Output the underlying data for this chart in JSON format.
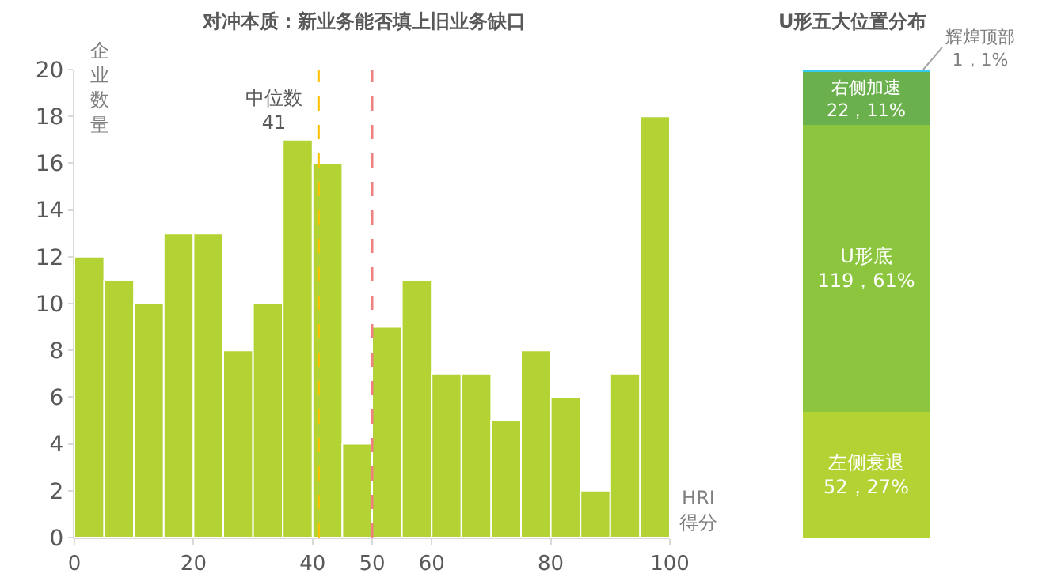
{
  "chart_data": [
    {
      "type": "histogram",
      "title": "对冲本质：新业务能否填上旧业务缺口",
      "xlabel": "HRI\n得分",
      "ylabel": "企业数量",
      "color": "#b3d234",
      "bins": [
        0,
        5,
        10,
        15,
        20,
        25,
        30,
        35,
        40,
        45,
        50,
        55,
        60,
        65,
        70,
        75,
        80,
        85,
        90,
        95,
        100
      ],
      "values": [
        12,
        11,
        10,
        13,
        13,
        8,
        10,
        17,
        16,
        4,
        9,
        11,
        7,
        7,
        5,
        8,
        6,
        2,
        7,
        18
      ],
      "xlim": [
        0,
        100
      ],
      "xticks": [
        0,
        20,
        40,
        50,
        60,
        80,
        100
      ],
      "ylim": [
        0,
        20
      ],
      "yticks": [
        0,
        2,
        4,
        6,
        8,
        10,
        12,
        14,
        16,
        18,
        20
      ],
      "ref_lines": [
        {
          "axis": "x",
          "value": 41,
          "label": "中位数\n41",
          "color": "#ffc000",
          "line_style": "dashed"
        },
        {
          "axis": "x",
          "value": 50,
          "label": null,
          "color": "#f08080",
          "line_style": "dashed"
        }
      ],
      "grid": false,
      "legend": false
    },
    {
      "type": "bar",
      "title": "U形五大位置分布",
      "stacked": true,
      "categories": [
        null
      ],
      "legend": false,
      "series": [
        {
          "name": "左侧衰退",
          "color": "#b3d234",
          "values": [
            52
          ],
          "value_labels": [
            "52，27%"
          ]
        },
        {
          "name": "U形底",
          "color": "#8cc63f",
          "values": [
            119
          ],
          "value_labels": [
            "119，61%"
          ]
        },
        {
          "name": "右侧加速",
          "color": "#6ab04c",
          "values": [
            22
          ],
          "value_labels": [
            "22，11%"
          ]
        },
        {
          "name": "辉煌顶部",
          "color": "#33ccee",
          "values": [
            1
          ],
          "value_labels": [
            "1，1%"
          ]
        }
      ]
    }
  ]
}
